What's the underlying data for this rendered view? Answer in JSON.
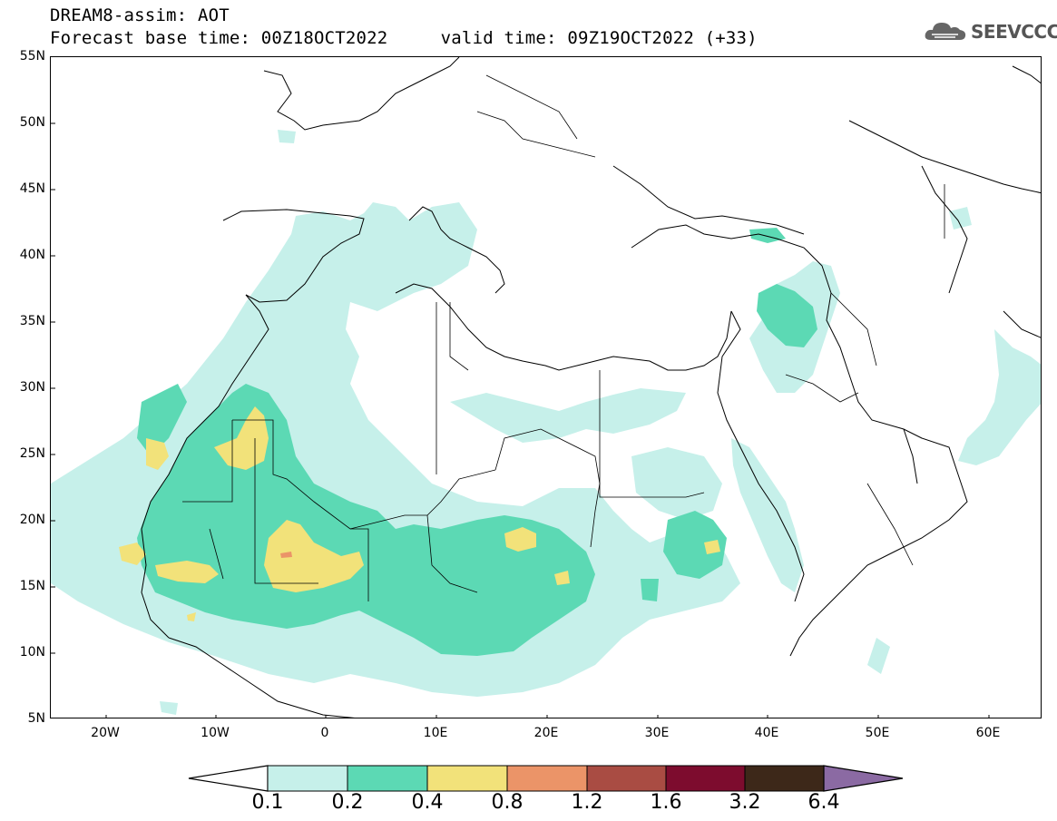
{
  "header": {
    "title": "DREAM8-assim: AOT",
    "base_time_label": "Forecast base time: 00Z18OCT2022",
    "valid_time_label": "valid time: 09Z19OCT2022 (+33)"
  },
  "logo": {
    "text": "SEEVCCC",
    "icon": "cloud-icon"
  },
  "axes": {
    "lat_labels": [
      "55N",
      "50N",
      "45N",
      "40N",
      "35N",
      "30N",
      "25N",
      "20N",
      "15N",
      "10N",
      "5N"
    ],
    "lon_labels": [
      "20W",
      "10W",
      "0",
      "10E",
      "20E",
      "30E",
      "40E",
      "50E",
      "60E"
    ],
    "lon_range": [
      -25,
      65
    ],
    "lat_range": [
      5,
      55
    ]
  },
  "colorbar": {
    "labels": [
      "0.1",
      "0.2",
      "0.4",
      "0.8",
      "1.2",
      "1.6",
      "3.2",
      "6.4"
    ],
    "colors": [
      "#ffffff",
      "#c6f0ea",
      "#5cd9b4",
      "#f2e27a",
      "#eb9468",
      "#a94c43",
      "#7d0c2e",
      "#3d2819",
      "#8b6aa3"
    ]
  }
}
